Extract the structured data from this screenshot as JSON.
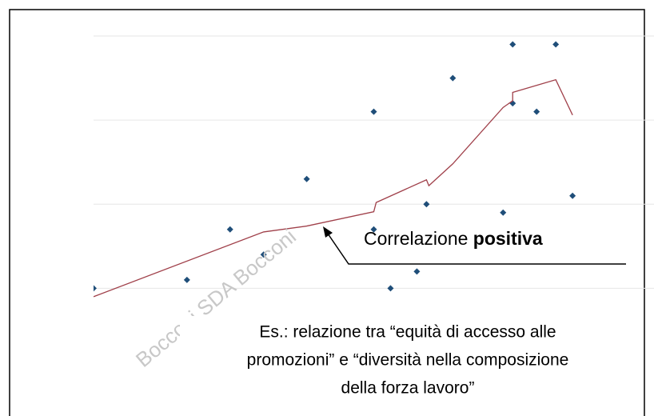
{
  "chart_data": {
    "type": "scatter",
    "x": [
      0,
      3.9,
      5.7,
      7.1,
      8.9,
      11.7,
      11.7,
      12.4,
      13.5,
      13.9,
      15,
      17.1,
      17.5,
      17.5,
      18.5,
      19.3,
      20
    ],
    "series": [
      {
        "type": "scatter",
        "color": "#1f4e79",
        "x": [
          0,
          3.9,
          5.7,
          7.1,
          8.9,
          11.7,
          11.7,
          12.4,
          13.5,
          13.9,
          15,
          17.1,
          17.5,
          17.5,
          18.5,
          19.3,
          20
        ],
        "values": [
          0,
          0.1,
          0.7,
          0.4,
          1.3,
          2.1,
          0.7,
          0,
          0.2,
          1.0,
          2.5,
          0.9,
          2.9,
          2.2,
          2.1,
          2.9,
          1.1
        ]
      },
      {
        "type": "line",
        "color": "#a0404a",
        "x": [
          0,
          7.1,
          8.9,
          11.7,
          11.8,
          13.9,
          14,
          15,
          17.1,
          17.5,
          17.5,
          19.3,
          20
        ],
        "values": [
          -0.1,
          0.67,
          0.74,
          0.91,
          1.02,
          1.29,
          1.22,
          1.48,
          2.15,
          2.23,
          2.33,
          2.48,
          2.06
        ]
      }
    ],
    "xlim": [
      0,
      23
    ],
    "ylim": [
      -1.5,
      3.2
    ],
    "yticks": [
      0,
      1,
      2,
      3
    ],
    "grid": true,
    "annotation": {
      "text": "Correlazione ",
      "bold": "positiva"
    },
    "note": [
      "Es.: relazione tra “equità di accesso alle",
      "promozioni” e “diversità nella composizione",
      "della forza lavoro”"
    ],
    "watermark": "Bocconi SDA Bocconi"
  }
}
